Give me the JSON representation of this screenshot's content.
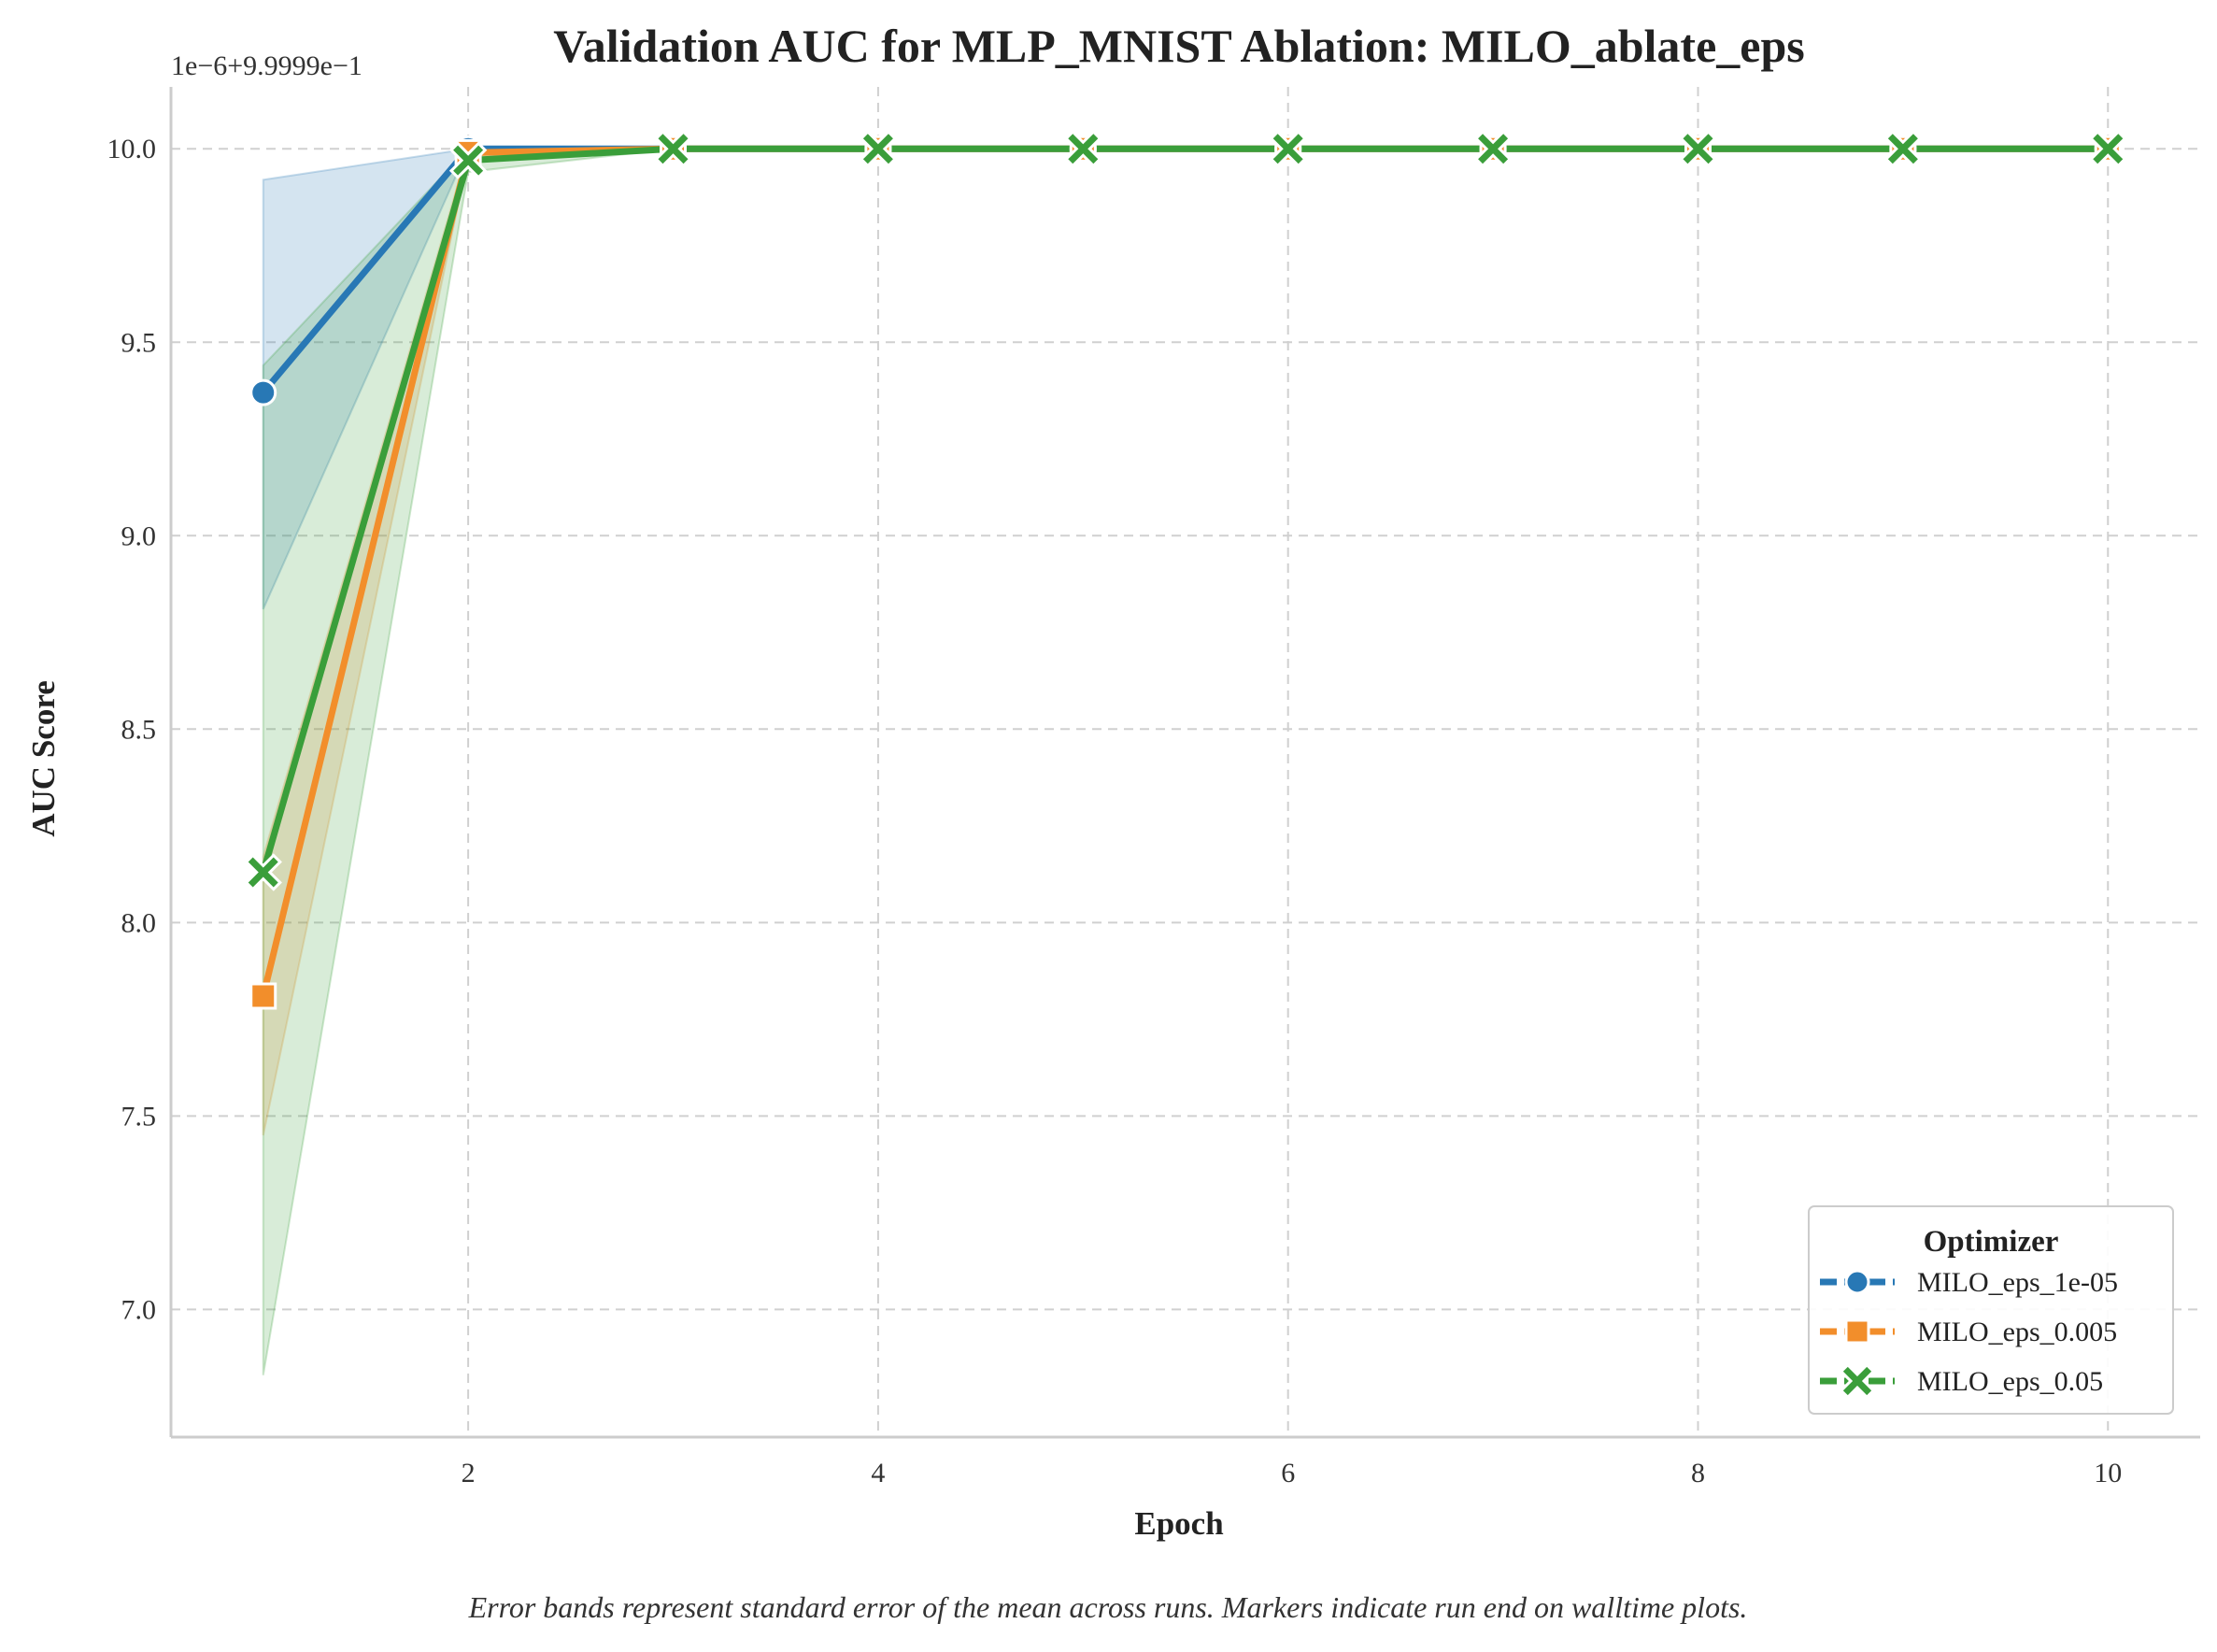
{
  "chart_data": {
    "type": "line",
    "title": "Validation AUC for MLP_MNIST Ablation: MILO_ablate_eps",
    "xlabel": "Epoch",
    "ylabel": "AUC Score",
    "y_offset_label": "1e−6+9.9999e−1",
    "caption": "Error bands represent standard error of the mean across runs. Markers indicate run end on walltime plots.",
    "xlim": [
      0.55,
      10.45
    ],
    "ylim": [
      6.67,
      10.16
    ],
    "x_ticks": [
      2,
      4,
      6,
      8,
      10
    ],
    "x_tick_labels": [
      "2",
      "4",
      "6",
      "8",
      "10"
    ],
    "y_ticks": [
      7.0,
      7.5,
      8.0,
      8.5,
      9.0,
      9.5,
      10.0
    ],
    "y_tick_labels": [
      "7.0",
      "7.5",
      "8.0",
      "8.5",
      "9.0",
      "9.5",
      "10.0"
    ],
    "grid": true,
    "legend": {
      "title": "Optimizer",
      "position": "lower-right"
    },
    "x": [
      1,
      2,
      3,
      4,
      5,
      6,
      7,
      8,
      9,
      10
    ],
    "series": [
      {
        "name": "MILO_eps_1e-05",
        "color": "#2878b5",
        "marker": "circle",
        "values": [
          9.37,
          10.0,
          10.0,
          10.0,
          10.0,
          10.0,
          10.0,
          10.0,
          10.0,
          10.0
        ],
        "lower": [
          8.81,
          10.0,
          10.0,
          10.0,
          10.0,
          10.0,
          10.0,
          10.0,
          10.0,
          10.0
        ],
        "upper": [
          9.92,
          10.0,
          10.0,
          10.0,
          10.0,
          10.0,
          10.0,
          10.0,
          10.0,
          10.0
        ]
      },
      {
        "name": "MILO_eps_0.005",
        "color": "#f28e2b",
        "marker": "square",
        "values": [
          7.81,
          9.99,
          10.0,
          10.0,
          10.0,
          10.0,
          10.0,
          10.0,
          10.0,
          10.0
        ],
        "lower": [
          7.45,
          9.98,
          10.0,
          10.0,
          10.0,
          10.0,
          10.0,
          10.0,
          10.0,
          10.0
        ],
        "upper": [
          8.17,
          10.0,
          10.0,
          10.0,
          10.0,
          10.0,
          10.0,
          10.0,
          10.0,
          10.0
        ]
      },
      {
        "name": "MILO_eps_0.05",
        "color": "#3a9e3a",
        "marker": "x",
        "values": [
          8.13,
          9.97,
          10.0,
          10.0,
          10.0,
          10.0,
          10.0,
          10.0,
          10.0,
          10.0
        ],
        "lower": [
          6.83,
          9.94,
          10.0,
          10.0,
          10.0,
          10.0,
          10.0,
          10.0,
          10.0,
          10.0
        ],
        "upper": [
          9.44,
          10.0,
          10.0,
          10.0,
          10.0,
          10.0,
          10.0,
          10.0,
          10.0,
          10.0
        ]
      }
    ]
  }
}
